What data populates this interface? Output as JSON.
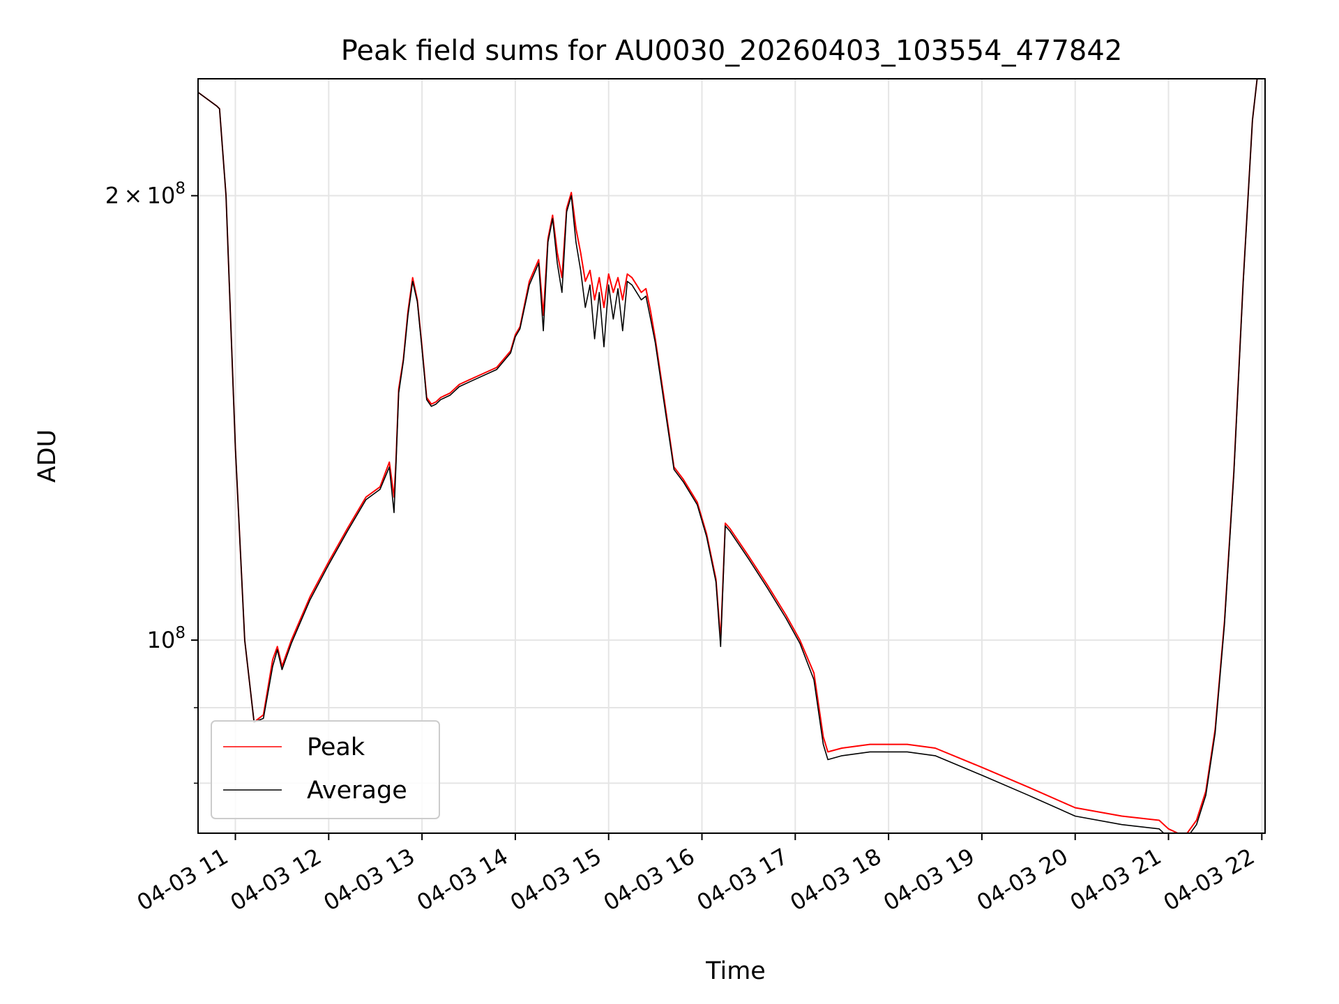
{
  "chart_data": {
    "type": "line",
    "title": "Peak field sums for AU0030_20260403_103554_477842",
    "xlabel": "Time",
    "ylabel": "ADU",
    "y_scale": "log",
    "ylim": [
      74000000,
      240000000
    ],
    "xlim": [
      "04-03 10:36",
      "04-03 22:02"
    ],
    "grid": true,
    "legend_position": "lower left",
    "x_tick_labels": [
      "04-03 11",
      "04-03 12",
      "04-03 13",
      "04-03 14",
      "04-03 15",
      "04-03 16",
      "04-03 17",
      "04-03 18",
      "04-03 19",
      "04-03 20",
      "04-03 21",
      "04-03 22"
    ],
    "x_tick_hours": [
      11,
      12,
      13,
      14,
      15,
      16,
      17,
      18,
      19,
      20,
      21,
      22
    ],
    "y_ticks": [
      {
        "value": 200000000,
        "mantissa": "2",
        "exponent": "8"
      },
      {
        "value": 100000000,
        "mantissa": "",
        "exponent": "8"
      }
    ],
    "y_minor_ticks": [
      80000000,
      90000000
    ],
    "series": [
      {
        "name": "Peak",
        "color": "#ff0000",
        "x_hours": [
          10.6,
          10.8,
          10.83,
          10.9,
          11.0,
          11.1,
          11.2,
          11.3,
          11.4,
          11.45,
          11.5,
          11.6,
          11.8,
          12.0,
          12.2,
          12.4,
          12.55,
          12.65,
          12.7,
          12.72,
          12.75,
          12.8,
          12.85,
          12.9,
          12.95,
          13.0,
          13.05,
          13.1,
          13.15,
          13.2,
          13.3,
          13.4,
          13.5,
          13.6,
          13.8,
          13.95,
          14.0,
          14.05,
          14.15,
          14.25,
          14.3,
          14.35,
          14.4,
          14.45,
          14.5,
          14.55,
          14.6,
          14.65,
          14.7,
          14.75,
          14.8,
          14.85,
          14.9,
          14.95,
          15.0,
          15.05,
          15.1,
          15.15,
          15.2,
          15.25,
          15.3,
          15.35,
          15.4,
          15.45,
          15.5,
          15.6,
          15.7,
          15.8,
          15.95,
          16.05,
          16.15,
          16.2,
          16.25,
          16.3,
          16.5,
          16.7,
          16.9,
          17.05,
          17.2,
          17.3,
          17.35,
          17.5,
          17.8,
          18.2,
          18.5,
          19.0,
          19.5,
          20.0,
          20.5,
          20.9,
          21.0,
          21.1,
          21.2,
          21.3,
          21.4,
          21.5,
          21.6,
          21.7,
          21.8,
          21.9,
          21.95
        ],
        "values": [
          235000000,
          230000000,
          229000000,
          200000000,
          135000000,
          100000000,
          88000000,
          89000000,
          97000000,
          99000000,
          96000000,
          100000000,
          107000000,
          113000000,
          119000000,
          125000000,
          127000000,
          132000000,
          125000000,
          132000000,
          148000000,
          155000000,
          167000000,
          176000000,
          170000000,
          158000000,
          146000000,
          144500000,
          145000000,
          146000000,
          147000000,
          149000000,
          150000000,
          151000000,
          153000000,
          157000000,
          161000000,
          163000000,
          175000000,
          181000000,
          166000000,
          187000000,
          194000000,
          183000000,
          176000000,
          196000000,
          201000000,
          190000000,
          183000000,
          175000000,
          178000000,
          170000000,
          176000000,
          168000000,
          177000000,
          172000000,
          176000000,
          170000000,
          177000000,
          176000000,
          174000000,
          172000000,
          173000000,
          167000000,
          160000000,
          145000000,
          131000000,
          128500000,
          124000000,
          118000000,
          110000000,
          100000000,
          120000000,
          119000000,
          114000000,
          109000000,
          104000000,
          100000000,
          95000000,
          86000000,
          84000000,
          84500000,
          85000000,
          85000000,
          84500000,
          82000000,
          79500000,
          77000000,
          76000000,
          75500000,
          74500000,
          74000000,
          74000000,
          75500000,
          79000000,
          87000000,
          103000000,
          130000000,
          175000000,
          225000000,
          240000000
        ]
      },
      {
        "name": "Average",
        "color": "#000000",
        "x_hours": [
          10.6,
          10.8,
          10.83,
          10.9,
          11.0,
          11.1,
          11.2,
          11.3,
          11.4,
          11.45,
          11.5,
          11.6,
          11.8,
          12.0,
          12.2,
          12.4,
          12.55,
          12.65,
          12.7,
          12.72,
          12.75,
          12.8,
          12.85,
          12.9,
          12.95,
          13.0,
          13.05,
          13.1,
          13.15,
          13.2,
          13.3,
          13.4,
          13.5,
          13.6,
          13.8,
          13.95,
          14.0,
          14.05,
          14.15,
          14.25,
          14.3,
          14.35,
          14.4,
          14.45,
          14.5,
          14.55,
          14.6,
          14.65,
          14.7,
          14.75,
          14.8,
          14.85,
          14.9,
          14.95,
          15.0,
          15.05,
          15.1,
          15.15,
          15.2,
          15.25,
          15.3,
          15.35,
          15.4,
          15.45,
          15.5,
          15.6,
          15.7,
          15.8,
          15.95,
          16.05,
          16.15,
          16.2,
          16.25,
          16.3,
          16.5,
          16.7,
          16.9,
          17.05,
          17.2,
          17.3,
          17.35,
          17.5,
          17.8,
          18.2,
          18.5,
          19.0,
          19.5,
          20.0,
          20.5,
          20.9,
          21.0,
          21.1,
          21.2,
          21.3,
          21.4,
          21.5,
          21.6,
          21.7,
          21.8,
          21.9,
          21.95
        ],
        "values": [
          235000000,
          230000000,
          229000000,
          200000000,
          135000000,
          100000000,
          88000000,
          88500000,
          96000000,
          98500000,
          95500000,
          99500000,
          106500000,
          112500000,
          118500000,
          124500000,
          126500000,
          131000000,
          122000000,
          131000000,
          147000000,
          154500000,
          166000000,
          175000000,
          169500000,
          157500000,
          145500000,
          144000000,
          144500000,
          145500000,
          146500000,
          148500000,
          149500000,
          150500000,
          152500000,
          156500000,
          160500000,
          162500000,
          174000000,
          180000000,
          162000000,
          186000000,
          193000000,
          180000000,
          172000000,
          195000000,
          200000000,
          186000000,
          178000000,
          168000000,
          174000000,
          160000000,
          172000000,
          158000000,
          174000000,
          165000000,
          173000000,
          162000000,
          175000000,
          174000000,
          172000000,
          170000000,
          171000000,
          165000000,
          159000000,
          144000000,
          130500000,
          128000000,
          123500000,
          117500000,
          109500000,
          99000000,
          119500000,
          118500000,
          113500000,
          108500000,
          103500000,
          99500000,
          94000000,
          85000000,
          83000000,
          83500000,
          84000000,
          84000000,
          83500000,
          81000000,
          78500000,
          76000000,
          75000000,
          74500000,
          73500000,
          73300000,
          73500000,
          75000000,
          78500000,
          86500000,
          102500000,
          129500000,
          174500000,
          225000000,
          240000000
        ]
      }
    ]
  }
}
